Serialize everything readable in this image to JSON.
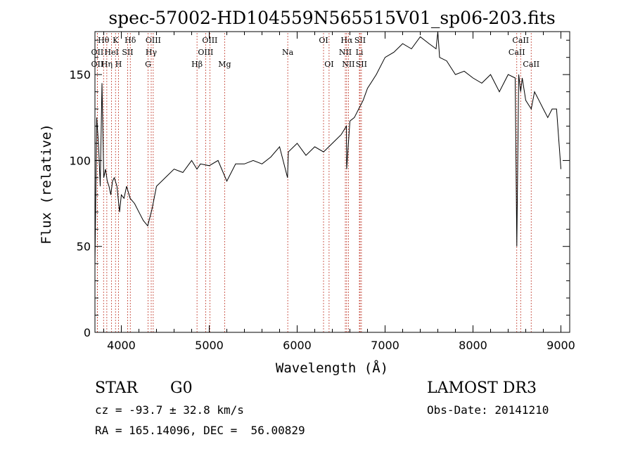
{
  "chart_data": {
    "type": "line",
    "title": "spec-57002-HD104559N565515V01_sp06-203.fits",
    "xlabel": "Wavelength (Å)",
    "ylabel": "Flux (relative)",
    "xlim": [
      3700,
      9100
    ],
    "ylim": [
      0,
      175
    ],
    "xticks": [
      4000,
      5000,
      6000,
      7000,
      8000,
      9000
    ],
    "yticks": [
      0,
      50,
      100,
      150
    ],
    "grid": false,
    "series": [
      {
        "x": [
          3700,
          3720,
          3740,
          3760,
          3780,
          3800,
          3820,
          3840,
          3860,
          3880,
          3900,
          3920,
          3950,
          3980,
          4000,
          4030,
          4060,
          4100,
          4150,
          4200,
          4250,
          4300,
          4350,
          4400,
          4500,
          4600,
          4700,
          4800,
          4860,
          4900,
          5000,
          5100,
          5200,
          5300,
          5400,
          5500,
          5600,
          5700,
          5800,
          5890,
          5900,
          6000,
          6100,
          6200,
          6300,
          6400,
          6500,
          6560,
          6563,
          6600,
          6650,
          6700,
          6750,
          6800,
          6900,
          7000,
          7100,
          7200,
          7300,
          7400,
          7500,
          7580,
          7600,
          7620,
          7700,
          7800,
          7900,
          8000,
          8100,
          8200,
          8300,
          8400,
          8480,
          8498,
          8520,
          8542,
          8560,
          8600,
          8662,
          8700,
          8750,
          8800,
          8850,
          8900,
          8950,
          9000
        ],
        "y": [
          40,
          125,
          110,
          85,
          145,
          90,
          95,
          88,
          85,
          80,
          88,
          90,
          85,
          70,
          80,
          78,
          85,
          78,
          75,
          70,
          65,
          62,
          72,
          85,
          90,
          95,
          93,
          100,
          95,
          98,
          97,
          100,
          88,
          98,
          98,
          100,
          98,
          102,
          108,
          90,
          105,
          110,
          103,
          108,
          105,
          110,
          115,
          120,
          95,
          123,
          125,
          130,
          135,
          142,
          150,
          160,
          163,
          168,
          165,
          172,
          168,
          165,
          175,
          160,
          158,
          150,
          152,
          148,
          145,
          150,
          140,
          150,
          148,
          50,
          150,
          140,
          148,
          135,
          130,
          140,
          135,
          130,
          125,
          130,
          130,
          95
        ]
      }
    ],
    "lines": [
      {
        "label": "Hθ",
        "x": 3798,
        "row": 0
      },
      {
        "label": "OII",
        "x": 3727,
        "row": 1
      },
      {
        "label": "OII",
        "x": 3727,
        "row": 2
      },
      {
        "label": "K",
        "x": 3934,
        "row": 0
      },
      {
        "label": "HeI",
        "x": 3889,
        "row": 1
      },
      {
        "label": "Hη",
        "x": 3835,
        "row": 2
      },
      {
        "label": "H",
        "x": 3968,
        "row": 2
      },
      {
        "label": "Hδ",
        "x": 4102,
        "row": 0
      },
      {
        "label": "SII",
        "x": 4072,
        "row": 1
      },
      {
        "label": "OIII",
        "x": 4363,
        "row": 0
      },
      {
        "label": "Hγ",
        "x": 4340,
        "row": 1
      },
      {
        "label": "G",
        "x": 4304,
        "row": 2
      },
      {
        "label": "OIII",
        "x": 5007,
        "row": 0
      },
      {
        "label": "OIII",
        "x": 4959,
        "row": 1
      },
      {
        "label": "Hβ",
        "x": 4861,
        "row": 2
      },
      {
        "label": "Mg",
        "x": 5175,
        "row": 2
      },
      {
        "label": "Na",
        "x": 5893,
        "row": 1
      },
      {
        "label": "OI",
        "x": 6300,
        "row": 0
      },
      {
        "label": "OI",
        "x": 6363,
        "row": 2
      },
      {
        "label": "Hα",
        "x": 6563,
        "row": 0
      },
      {
        "label": "SII",
        "x": 6716,
        "row": 0
      },
      {
        "label": "NII",
        "x": 6548,
        "row": 1
      },
      {
        "label": "Li",
        "x": 6708,
        "row": 1
      },
      {
        "label": "NII",
        "x": 6583,
        "row": 2
      },
      {
        "label": "SII",
        "x": 6731,
        "row": 2
      },
      {
        "label": "CaII",
        "x": 8542,
        "row": 0
      },
      {
        "label": "CaII",
        "x": 8498,
        "row": 1
      },
      {
        "label": "CaII",
        "x": 8662,
        "row": 2
      }
    ]
  },
  "info": {
    "class_label": "STAR",
    "subclass": "G0",
    "survey": "LAMOST DR3",
    "cz": "cz = -93.7 ± 32.8 km/s",
    "obs_date": "Obs-Date: 20141210",
    "coords": "RA = 165.14096, DEC =  56.00829"
  }
}
